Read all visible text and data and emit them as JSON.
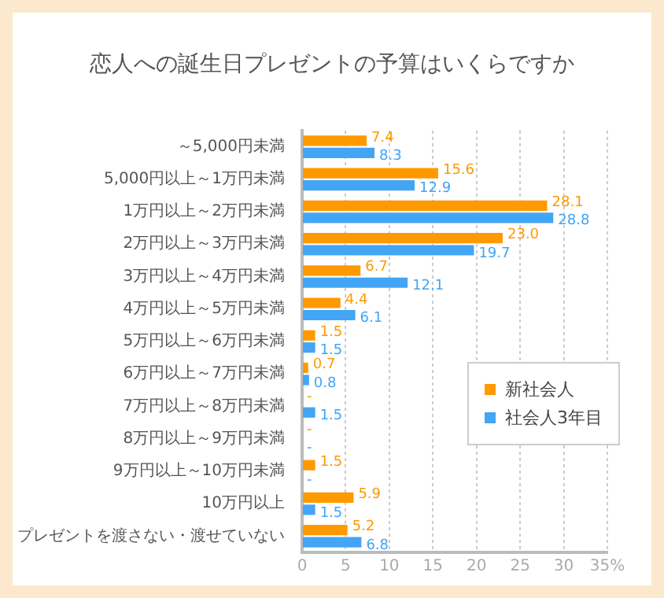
{
  "chart_data": {
    "type": "bar",
    "orientation": "horizontal",
    "title": "恋人への誕生日プレゼントの予算はいくらですか",
    "categories": [
      "～5,000円未満",
      "5,000円以上～1万円未満",
      "1万円以上～2万円未満",
      "2万円以上～3万円未満",
      "3万円以上～4万円未満",
      "4万円以上～5万円未満",
      "5万円以上～6万円未満",
      "6万円以上～7万円未満",
      "7万円以上～8万円未満",
      "8万円以上～9万円未満",
      "9万円以上～10万円未満",
      "10万円以上",
      "プレゼントを渡さない・渡せていない"
    ],
    "series": [
      {
        "name": "新社会人",
        "color": "#ff9900",
        "values": [
          7.4,
          15.6,
          28.1,
          23.0,
          6.7,
          4.4,
          1.5,
          0.7,
          0,
          0,
          1.5,
          5.9,
          5.2
        ],
        "value_labels": [
          "7.4",
          "15.6",
          "28.1",
          "23.0",
          "6.7",
          "4.4",
          "1.5",
          "0.7",
          "-",
          "-",
          "1.5",
          "5.9",
          "5.2"
        ]
      },
      {
        "name": "社会人3年目",
        "color": "#42a5f5",
        "values": [
          8.3,
          12.9,
          28.8,
          19.7,
          12.1,
          6.1,
          1.5,
          0.8,
          1.5,
          0,
          0,
          1.5,
          6.8
        ],
        "value_labels": [
          "8.3",
          "12.9",
          "28.8",
          "19.7",
          "12.1",
          "6.1",
          "1.5",
          "0.8",
          "1.5",
          "-",
          "-",
          "1.5",
          "6.8"
        ]
      }
    ],
    "xlim": [
      0,
      35
    ],
    "xticks": [
      0,
      5,
      10,
      15,
      20,
      25,
      30,
      {
        "value": 35,
        "label": "35%"
      }
    ],
    "grid": "x",
    "legend": "right"
  }
}
